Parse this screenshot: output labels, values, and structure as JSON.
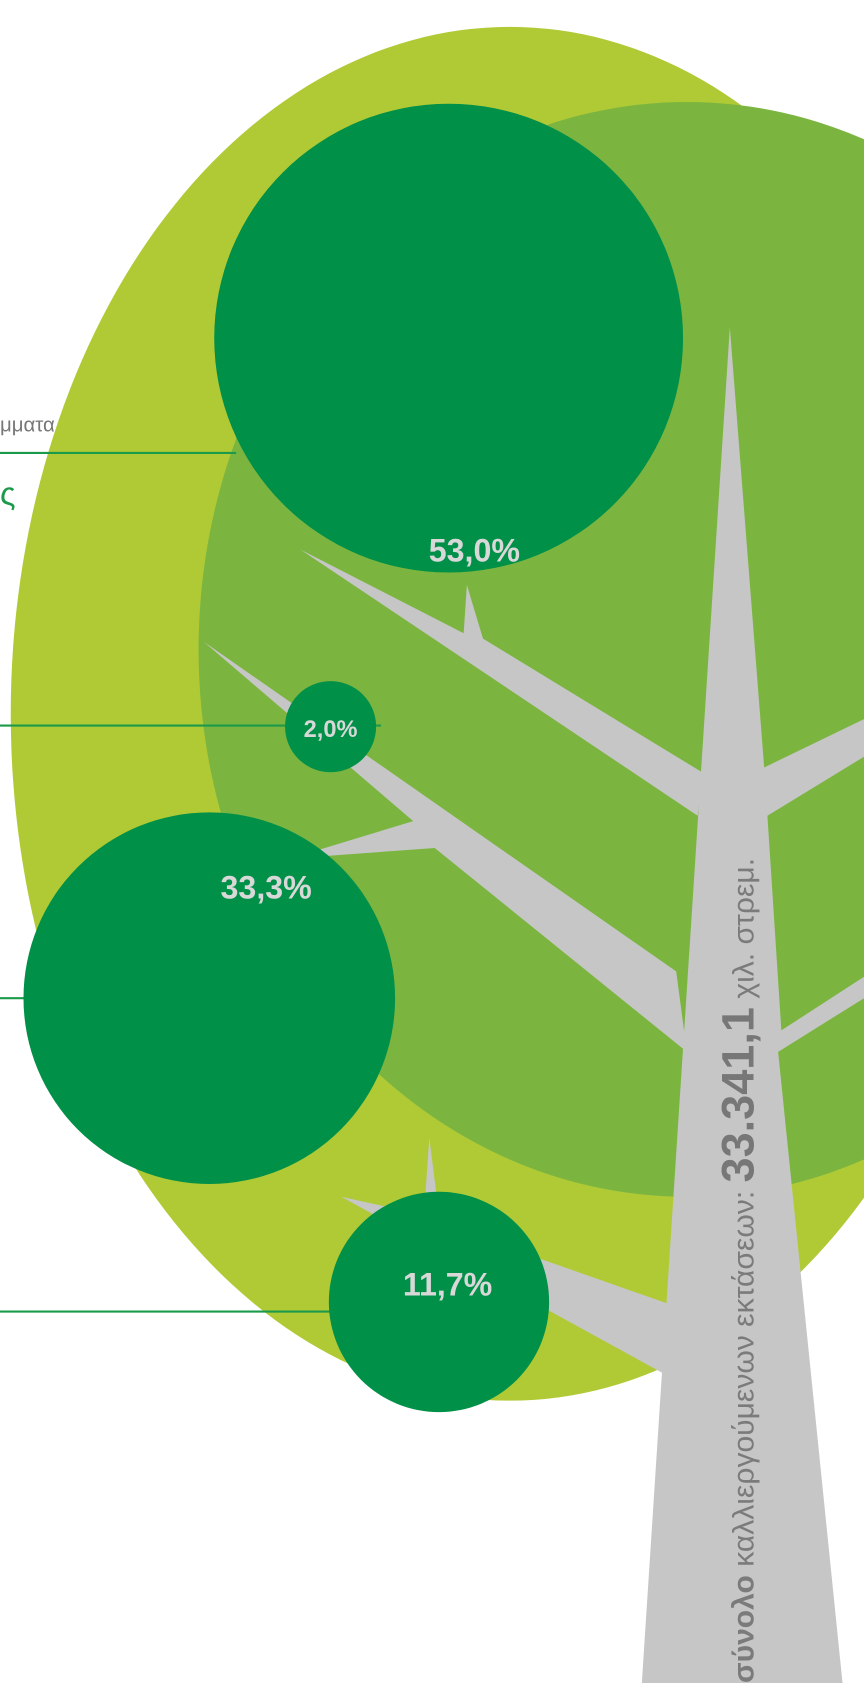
{
  "chart_data": {
    "type": "bubble",
    "side_texts": [
      "μματα",
      "ς"
    ],
    "values": [
      53.0,
      2.0,
      33.3,
      11.7
    ],
    "value_labels": [
      "53,0%",
      "2,0%",
      "33,3%",
      "11,7%"
    ],
    "color": "#009048",
    "total": {
      "prefix": "σύνολο",
      "text": "καλλιεργούμενων εκτάσεων:",
      "value": "33.341,1",
      "unit": "χιλ. στρεμ."
    }
  }
}
